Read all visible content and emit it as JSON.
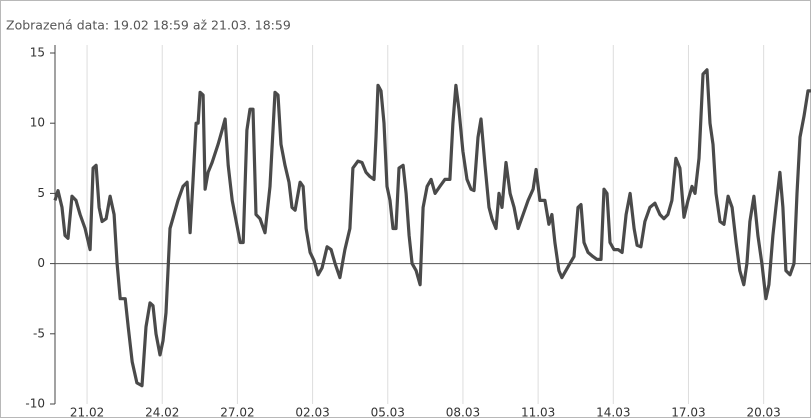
{
  "chart_data": {
    "type": "line",
    "title": "Zobrazená data: 19.02 18:59 až 21.03. 18:59",
    "series": [
      {
        "color": "#4a4a4a",
        "x": [
          -1.28,
          -1.16,
          -1.0,
          -0.88,
          -0.76,
          -0.6,
          -0.44,
          -0.28,
          -0.08,
          0.12,
          0.24,
          0.36,
          0.48,
          0.6,
          0.76,
          0.92,
          1.08,
          1.2,
          1.32,
          1.52,
          1.64,
          1.8,
          1.99,
          2.19,
          2.35,
          2.51,
          2.63,
          2.75,
          2.91,
          3.03,
          3.15,
          3.31,
          3.47,
          3.63,
          3.83,
          3.99,
          4.11,
          4.23,
          4.35,
          4.43,
          4.51,
          4.63,
          4.71,
          4.83,
          4.99,
          5.23,
          5.39,
          5.51,
          5.63,
          5.79,
          5.95,
          6.11,
          6.23,
          6.38,
          6.5,
          6.62,
          6.74,
          6.9,
          7.1,
          7.3,
          7.5,
          7.62,
          7.74,
          7.9,
          8.06,
          8.18,
          8.3,
          8.5,
          8.62,
          8.74,
          8.9,
          9.06,
          9.22,
          9.38,
          9.58,
          9.74,
          9.9,
          10.09,
          10.29,
          10.49,
          10.61,
          10.81,
          10.97,
          11.13,
          11.29,
          11.45,
          11.53,
          11.61,
          11.73,
          11.85,
          11.97,
          12.09,
          12.21,
          12.33,
          12.45,
          12.61,
          12.73,
          12.85,
          12.97,
          13.13,
          13.29,
          13.41,
          13.57,
          13.73,
          13.89,
          14.08,
          14.28,
          14.48,
          14.6,
          14.72,
          14.84,
          15.0,
          15.16,
          15.32,
          15.44,
          15.6,
          15.72,
          15.88,
          16.04,
          16.16,
          16.32,
          16.44,
          16.56,
          16.72,
          16.88,
          17.04,
          17.2,
          17.4,
          17.6,
          17.8,
          17.92,
          18.07,
          18.27,
          18.43,
          18.55,
          18.67,
          18.83,
          18.95,
          19.11,
          19.27,
          19.43,
          19.59,
          19.71,
          19.83,
          19.99,
          20.19,
          20.35,
          20.51,
          20.63,
          20.75,
          20.87,
          21.03,
          21.19,
          21.35,
          21.51,
          21.67,
          21.83,
          21.95,
          22.1,
          22.26,
          22.46,
          22.66,
          22.86,
          23.02,
          23.18,
          23.34,
          23.5,
          23.66,
          23.82,
          23.98,
          24.14,
          24.26,
          24.42,
          24.58,
          24.74,
          24.86,
          24.98,
          25.1,
          25.26,
          25.42,
          25.58,
          25.74,
          25.9,
          26.05,
          26.21,
          26.33,
          26.45,
          26.61,
          26.77,
          26.93,
          27.09,
          27.21,
          27.37,
          27.49,
          27.65,
          27.77,
          27.89,
          28.05,
          28.21,
          28.33,
          28.45,
          28.61,
          28.77,
          28.89
        ],
        "values": [
          4.5,
          5.2,
          4,
          2,
          1.8,
          4.8,
          4.5,
          3.5,
          2.5,
          1,
          6.8,
          7,
          4,
          3,
          3.2,
          4.8,
          3.5,
          0,
          -2.5,
          -2.5,
          -4.5,
          -7,
          -8.5,
          -8.7,
          -4.5,
          -2.8,
          -3,
          -5,
          -6.5,
          -5.5,
          -3.5,
          2.5,
          3.5,
          4.5,
          5.5,
          5.8,
          2.2,
          6,
          10,
          10,
          12.2,
          12,
          5.3,
          6.5,
          7.2,
          8.5,
          9.5,
          10.3,
          7,
          4.5,
          3,
          1.5,
          1.5,
          9.5,
          11,
          11,
          3.5,
          3.2,
          2.2,
          5.5,
          12.2,
          12,
          8.5,
          7,
          5.8,
          4,
          3.8,
          5.8,
          5.5,
          2.5,
          0.8,
          0.2,
          -0.8,
          -0.3,
          1.2,
          1,
          0,
          -1,
          1,
          2.5,
          6.8,
          7.3,
          7.2,
          6.5,
          6.2,
          6,
          9,
          12.7,
          12.3,
          10,
          5.5,
          4.5,
          2.5,
          2.5,
          6.8,
          7,
          5,
          2,
          0,
          -0.5,
          -1.5,
          4,
          5.5,
          6,
          5,
          5.5,
          6,
          6,
          10,
          12.7,
          11,
          8,
          6,
          5.3,
          5.2,
          9,
          10.3,
          7,
          4,
          3.2,
          2.5,
          5,
          4,
          7.2,
          5,
          4,
          2.5,
          3.5,
          4.5,
          5.3,
          6.7,
          4.5,
          4.5,
          2.8,
          3.5,
          1.5,
          -0.5,
          -1,
          -0.5,
          0,
          0.5,
          4,
          4.2,
          1.5,
          0.8,
          0.5,
          0.3,
          0.3,
          5.3,
          5,
          1.5,
          1,
          1,
          0.8,
          3.5,
          5,
          2.5,
          1.3,
          1.2,
          3,
          4,
          4.3,
          3.5,
          3.2,
          3.5,
          4.5,
          7.5,
          6.8,
          3.3,
          4.5,
          5.5,
          5,
          7.5,
          13.5,
          13.8,
          10,
          8.5,
          5,
          3,
          2.8,
          4.8,
          4,
          1.5,
          -0.5,
          -1.5,
          0,
          3,
          4.8,
          2,
          0,
          -2.5,
          -1.5,
          2,
          4,
          6.5,
          4,
          -0.5,
          -0.8,
          0,
          5,
          9,
          10.5,
          12.3,
          12.3
        ]
      }
    ],
    "xlim": [
      -1.28,
      28.89
    ],
    "xticks": [
      {
        "value": 0,
        "label": "21.02"
      },
      {
        "value": 3,
        "label": "24.02"
      },
      {
        "value": 6,
        "label": "27.02"
      },
      {
        "value": 9,
        "label": "02.03"
      },
      {
        "value": 12,
        "label": "05.03"
      },
      {
        "value": 15,
        "label": "08.03"
      },
      {
        "value": 18,
        "label": "11.03"
      },
      {
        "value": 21,
        "label": "14.03"
      },
      {
        "value": 24,
        "label": "17.03"
      },
      {
        "value": 27,
        "label": "20.03"
      }
    ],
    "ylim": [
      -10,
      15
    ],
    "yticks": [
      -10,
      -5,
      0,
      5,
      10,
      15
    ],
    "grid": true
  }
}
